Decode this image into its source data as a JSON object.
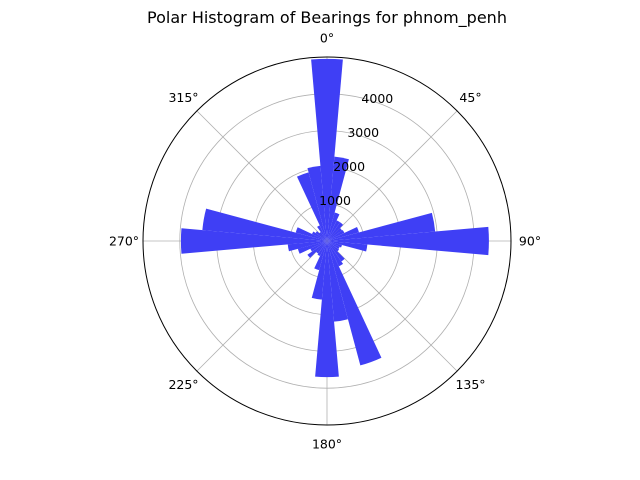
{
  "chart_data": {
    "type": "bar",
    "title": "Polar Histogram of Bearings for phnom_penh",
    "projection": "polar",
    "theta_zero": "north",
    "theta_direction": "clockwise",
    "angle_tick_labels": [
      "0°",
      "45°",
      "90°",
      "135°",
      "180°",
      "225°",
      "270°",
      "315°"
    ],
    "radial_tick_labels": [
      "1000",
      "2000",
      "3000",
      "4000"
    ],
    "radial_ticks": [
      1000,
      2000,
      3000,
      4000
    ],
    "rlim": [
      0,
      5000
    ],
    "grid": true,
    "bar_color": "#3f3ff5",
    "bin_width_deg": 10,
    "bin_centers_deg": [
      0,
      10,
      20,
      30,
      40,
      50,
      60,
      70,
      80,
      90,
      100,
      110,
      120,
      130,
      140,
      150,
      160,
      170,
      180,
      190,
      200,
      210,
      220,
      230,
      240,
      250,
      260,
      270,
      280,
      290,
      300,
      310,
      320,
      330,
      340,
      350
    ],
    "values": [
      4950,
      2300,
      800,
      620,
      620,
      500,
      520,
      900,
      2950,
      4400,
      1100,
      420,
      380,
      400,
      680,
      760,
      3500,
      2200,
      3700,
      1600,
      820,
      450,
      420,
      650,
      500,
      820,
      1070,
      3970,
      3400,
      880,
      450,
      380,
      300,
      470,
      1930,
      2050
    ]
  }
}
